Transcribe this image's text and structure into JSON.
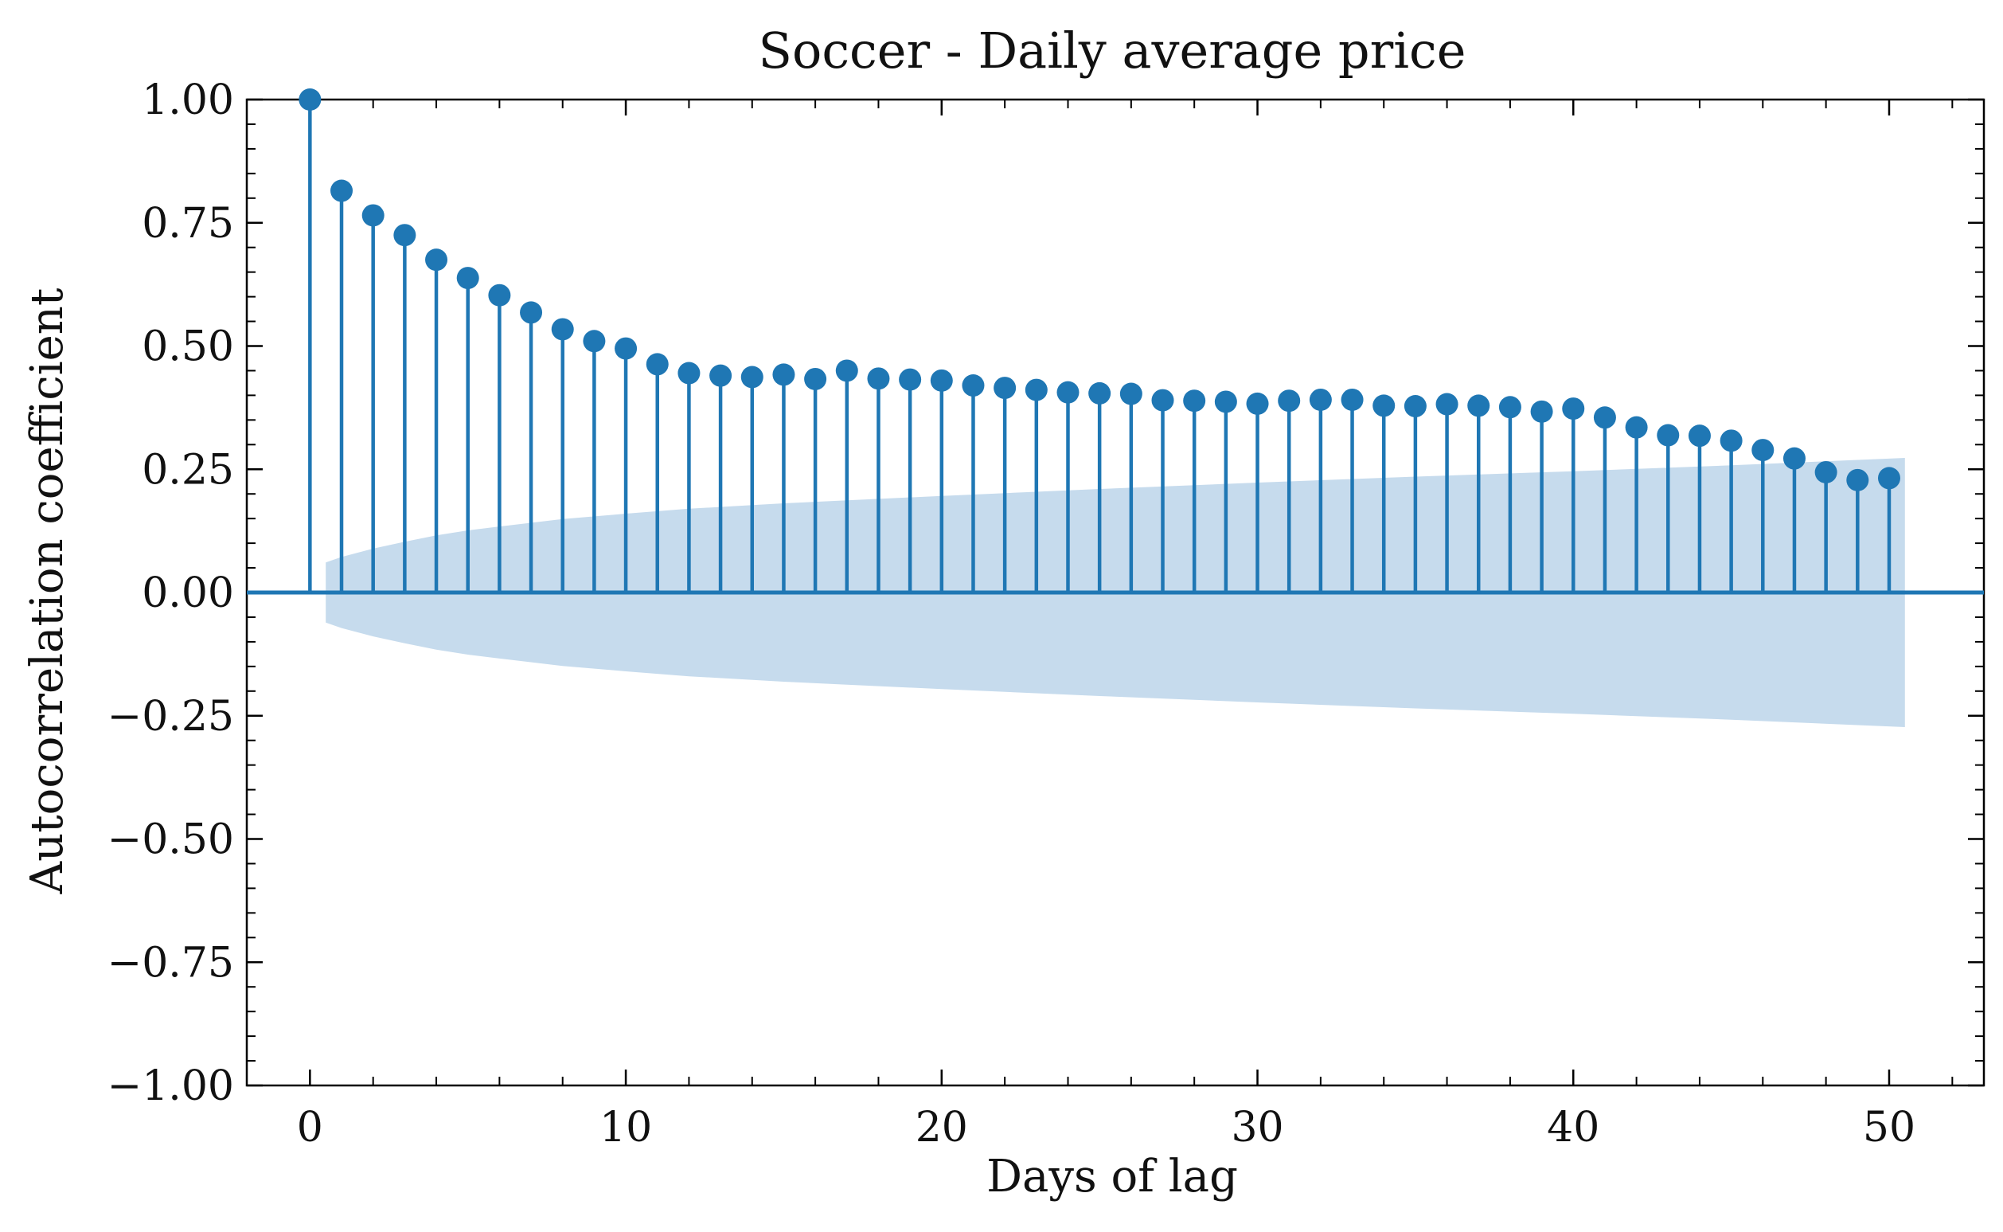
{
  "chart_data": {
    "type": "stem",
    "title": "Soccer - Daily average price",
    "xlabel": "Days of lag",
    "ylabel": "Autocorrelation coefficient",
    "xlim": [
      -2,
      53
    ],
    "ylim": [
      -1.0,
      1.0
    ],
    "x_ticks": [
      0,
      10,
      20,
      30,
      40,
      50
    ],
    "x_tick_labels": [
      "0",
      "10",
      "20",
      "30",
      "40",
      "50"
    ],
    "y_ticks": [
      1.0,
      0.75,
      0.5,
      0.25,
      0.0,
      -0.25,
      -0.5,
      -0.75,
      -1.0
    ],
    "y_tick_labels": [
      "1.00",
      "0.75",
      "0.50",
      "0.25",
      "0.00",
      "−0.25",
      "−0.50",
      "−0.75",
      "−1.00"
    ],
    "grid": false,
    "colors": {
      "stem": "#1f77b4",
      "confidence_band": "#c6dbed"
    },
    "series": [
      {
        "lags": [
          0,
          1,
          2,
          3,
          4,
          5,
          6,
          7,
          8,
          9,
          10,
          11,
          12,
          13,
          14,
          15,
          16,
          17,
          18,
          19,
          20,
          21,
          22,
          23,
          24,
          25,
          26,
          27,
          28,
          29,
          30,
          31,
          32,
          33,
          34,
          35,
          36,
          37,
          38,
          39,
          40,
          41,
          42,
          43,
          44,
          45,
          46,
          47,
          48,
          49,
          50
        ],
        "values": [
          1.0,
          0.815,
          0.765,
          0.725,
          0.675,
          0.638,
          0.603,
          0.568,
          0.534,
          0.51,
          0.495,
          0.463,
          0.445,
          0.44,
          0.437,
          0.442,
          0.433,
          0.45,
          0.434,
          0.432,
          0.43,
          0.42,
          0.415,
          0.411,
          0.406,
          0.404,
          0.403,
          0.39,
          0.389,
          0.387,
          0.383,
          0.389,
          0.391,
          0.391,
          0.379,
          0.378,
          0.382,
          0.379,
          0.376,
          0.367,
          0.373,
          0.355,
          0.335,
          0.319,
          0.318,
          0.308,
          0.289,
          0.272,
          0.244,
          0.228,
          0.232
        ]
      }
    ],
    "confidence_band": {
      "lags": [
        0.5,
        1,
        2,
        3,
        4,
        5,
        6,
        8,
        10,
        12,
        15,
        20,
        25,
        30,
        35,
        40,
        45,
        50.5
      ],
      "upper": [
        0.061,
        0.072,
        0.089,
        0.103,
        0.116,
        0.126,
        0.134,
        0.149,
        0.16,
        0.17,
        0.181,
        0.196,
        0.21,
        0.223,
        0.235,
        0.246,
        0.258,
        0.273
      ]
    }
  }
}
